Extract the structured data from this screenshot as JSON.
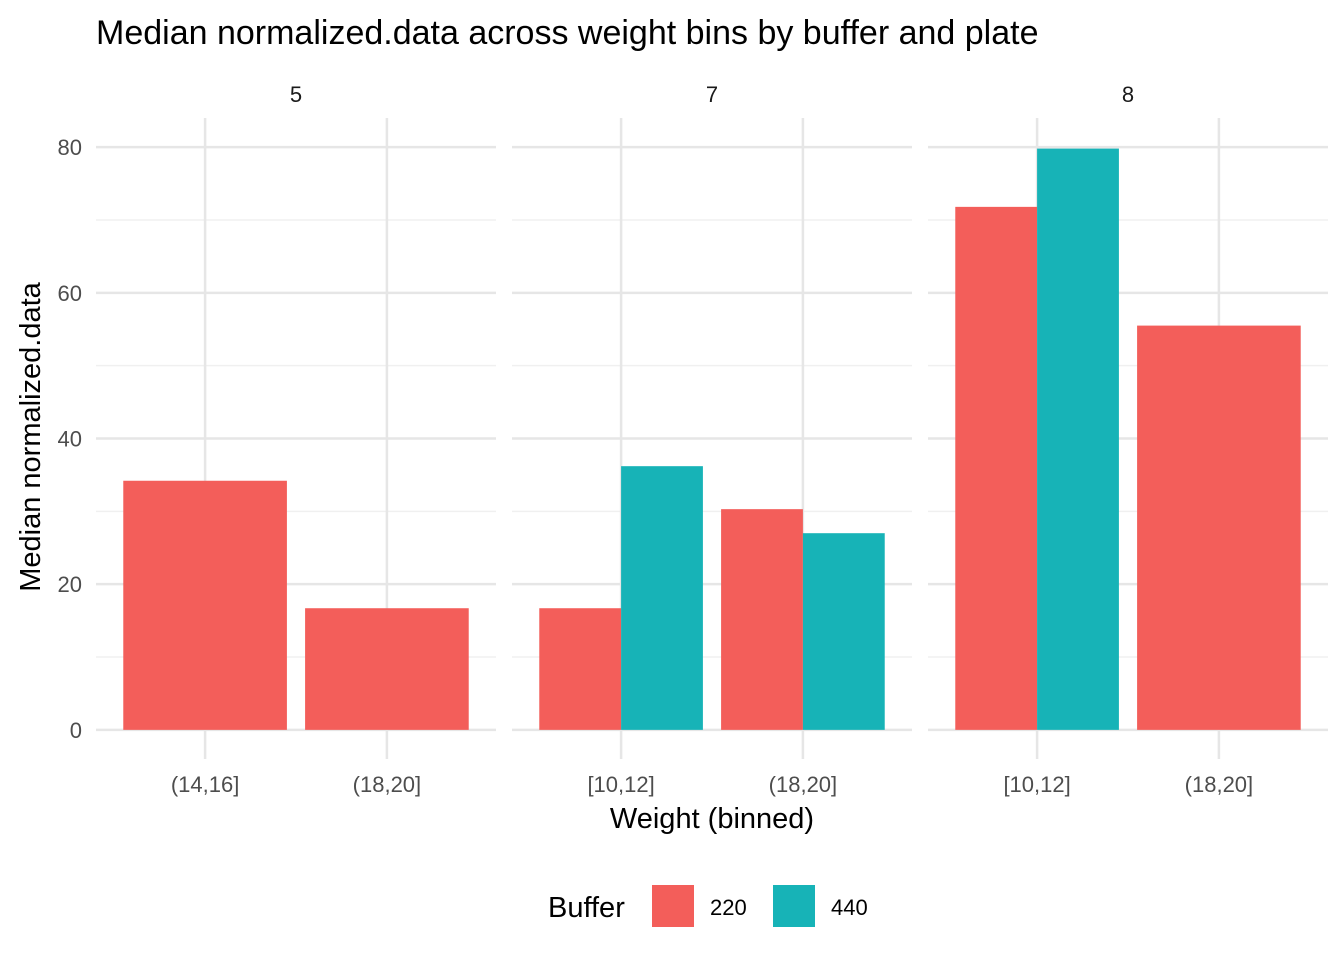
{
  "chart_data": {
    "type": "bar",
    "title": "Median normalized.data across weight bins by buffer and plate",
    "xlabel": "Weight (binned)",
    "ylabel": "Median normalized.data",
    "ylim": [
      -4,
      84
    ],
    "yticks": [
      0,
      20,
      40,
      60,
      80
    ],
    "grid": true,
    "legend": {
      "title": "Buffer",
      "position": "bottom"
    },
    "series_names": [
      "220",
      "440"
    ],
    "series_colors": {
      "220": "#F35E5A",
      "440": "#17B3B7"
    },
    "facets": [
      {
        "label": "5",
        "categories": [
          "(14,16]",
          "(18,20]"
        ],
        "bars": [
          {
            "category": "(14,16]",
            "series": "220",
            "value": 34.2
          },
          {
            "category": "(18,20]",
            "series": "220",
            "value": 16.7
          }
        ]
      },
      {
        "label": "7",
        "categories": [
          "[10,12]",
          "(18,20]"
        ],
        "bars": [
          {
            "category": "[10,12]",
            "series": "220",
            "value": 16.7
          },
          {
            "category": "[10,12]",
            "series": "440",
            "value": 36.2
          },
          {
            "category": "(18,20]",
            "series": "220",
            "value": 30.3
          },
          {
            "category": "(18,20]",
            "series": "440",
            "value": 27.0
          }
        ]
      },
      {
        "label": "8",
        "categories": [
          "[10,12]",
          "(18,20]"
        ],
        "bars": [
          {
            "category": "[10,12]",
            "series": "220",
            "value": 71.8
          },
          {
            "category": "[10,12]",
            "series": "440",
            "value": 79.8
          },
          {
            "category": "(18,20]",
            "series": "220",
            "value": 55.5
          }
        ]
      }
    ]
  }
}
